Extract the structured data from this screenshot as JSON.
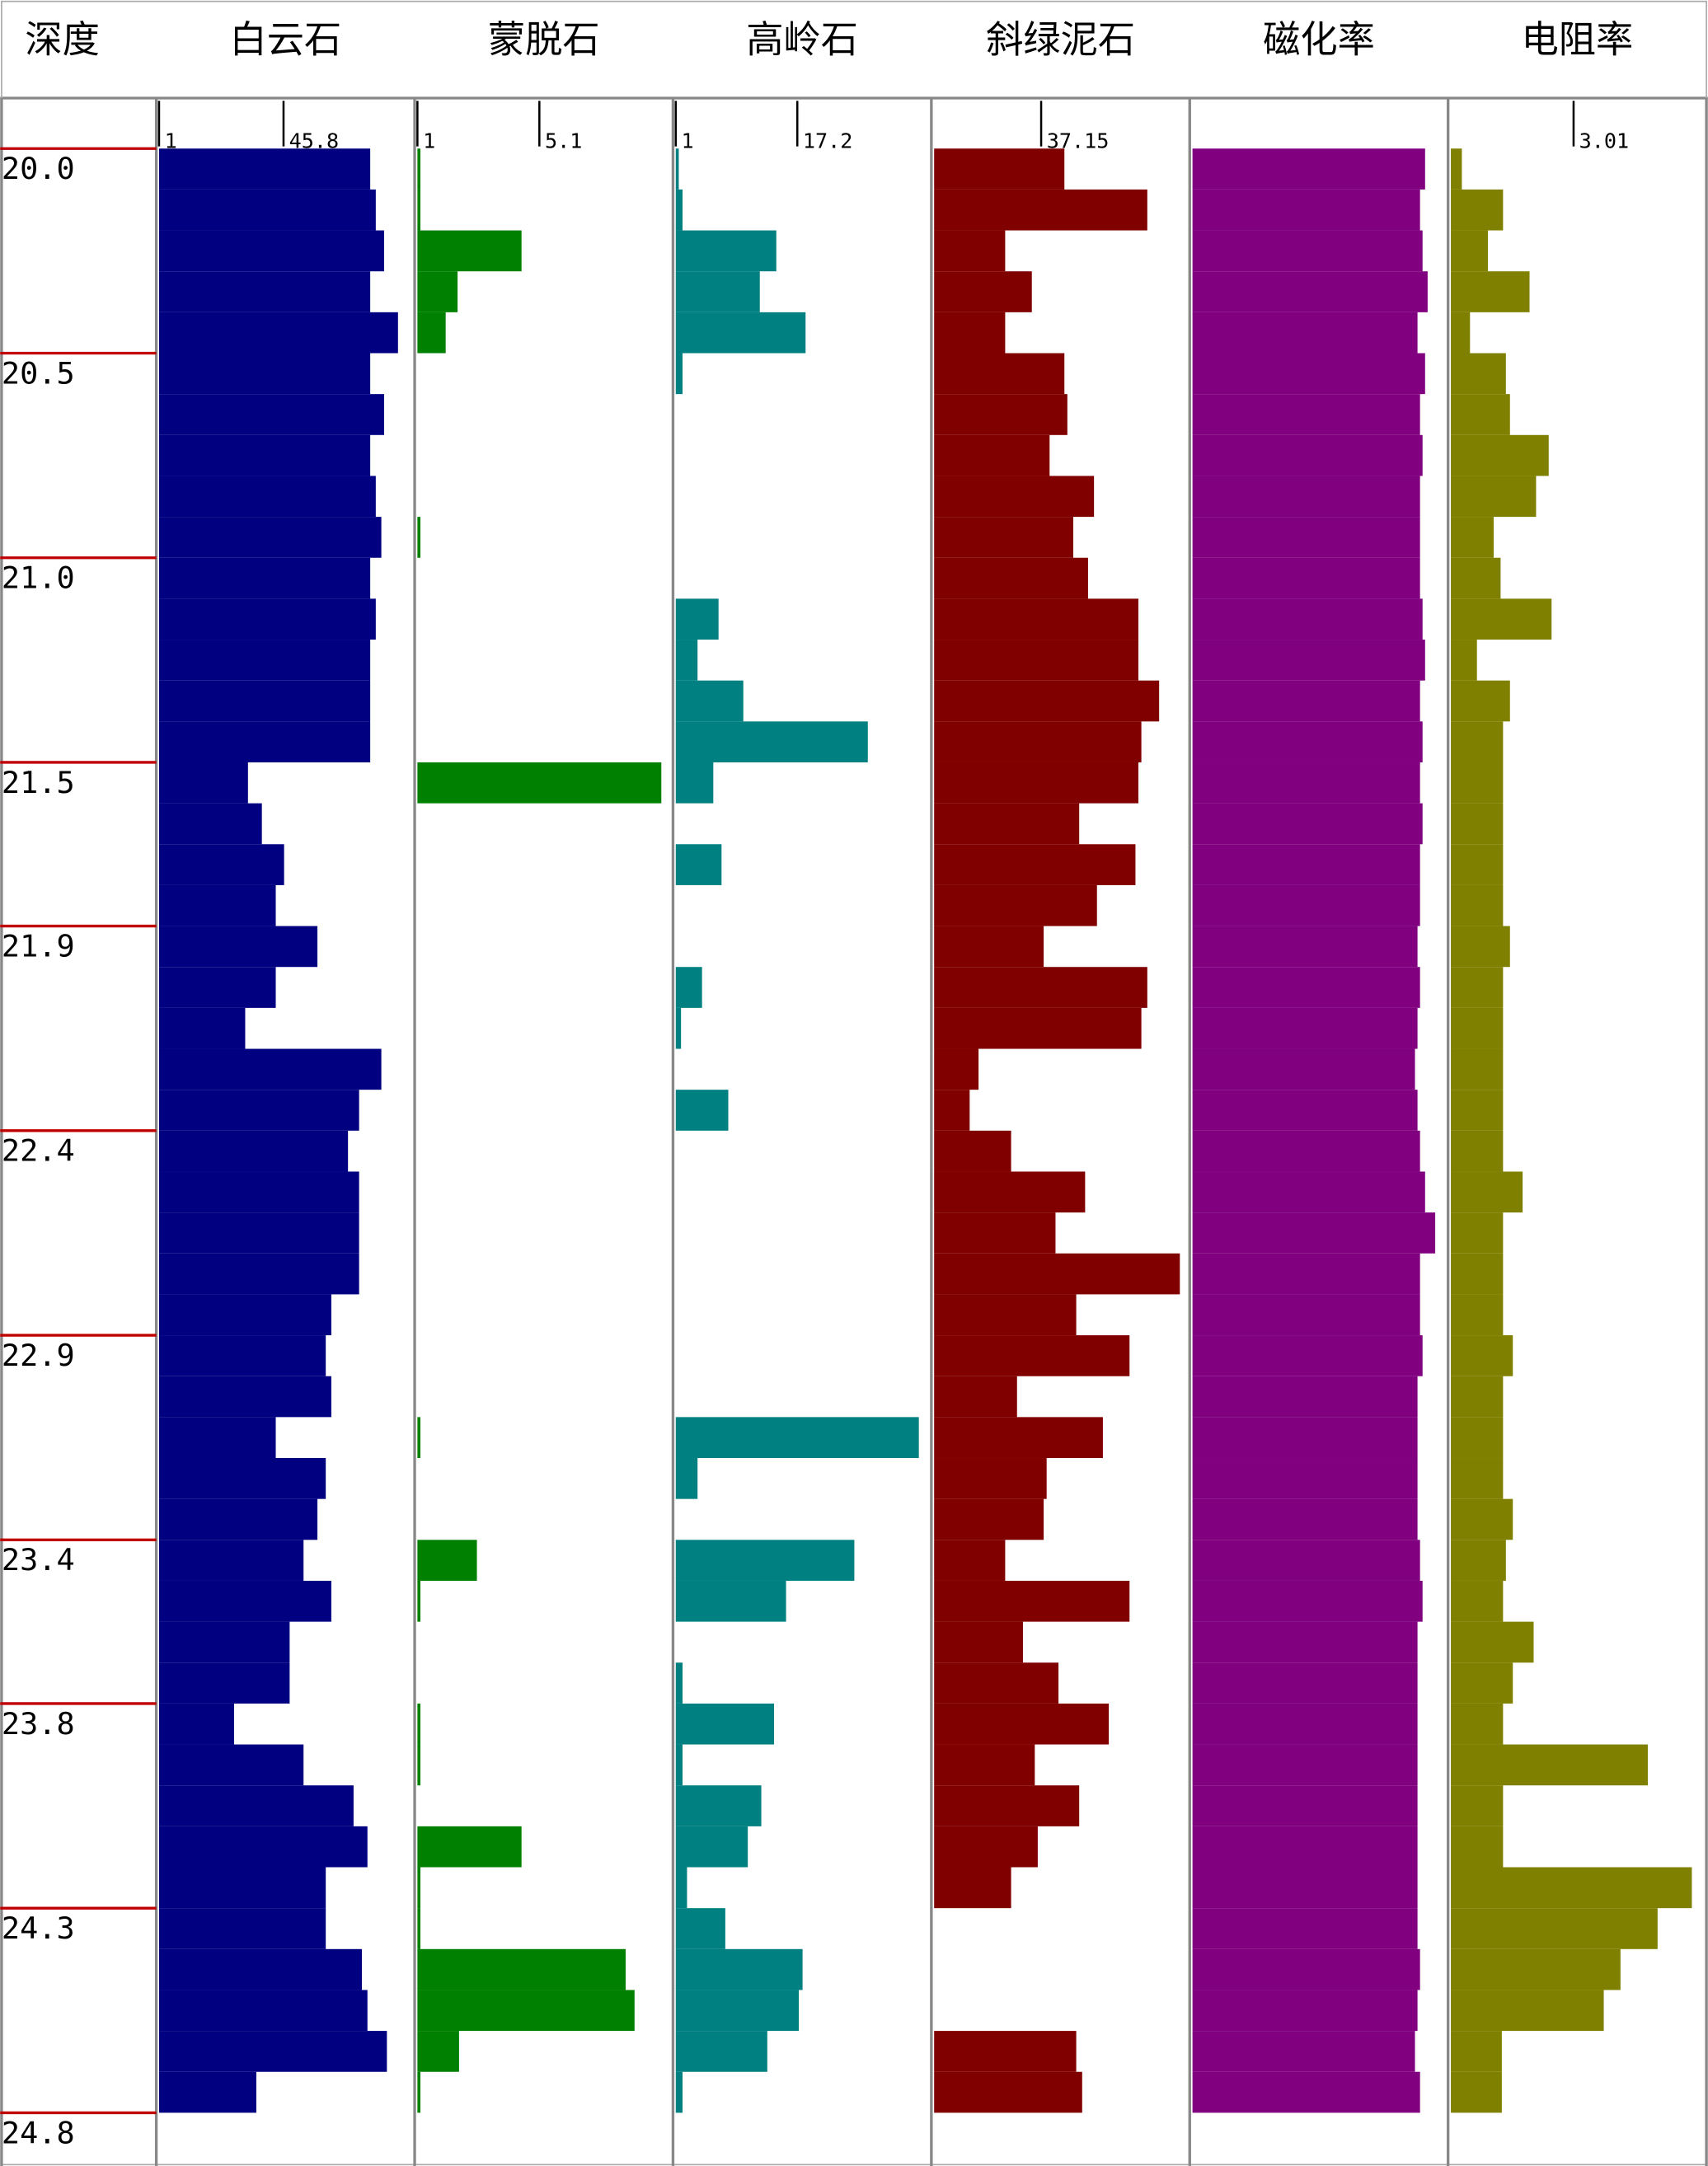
{
  "chart_data": {
    "type": "log-tracks",
    "y_label": "深度",
    "x": [
      20.0,
      20.1,
      20.2,
      20.3,
      20.4,
      20.5,
      20.6,
      20.7,
      20.8,
      20.9,
      21.0,
      21.1,
      21.2,
      21.3,
      21.4,
      21.5,
      21.6,
      21.7,
      21.8,
      21.9,
      22.0,
      22.1,
      22.2,
      22.3,
      22.4,
      22.5,
      22.6,
      22.7,
      22.8,
      22.9,
      23.0,
      23.1,
      23.2,
      23.3,
      23.4,
      23.5,
      23.6,
      23.7,
      23.8,
      23.9,
      24.0,
      24.1,
      24.2,
      24.3,
      24.4,
      24.5,
      24.6,
      24.7
    ],
    "ylim": [
      19.88,
      24.92
    ],
    "yticks": [
      {
        "value": 20.0,
        "label": "20.0"
      },
      {
        "value": 20.5,
        "label": "20.5"
      },
      {
        "value": 21.0,
        "label": "21.0"
      },
      {
        "value": 21.5,
        "label": "21.5"
      },
      21.9,
      22.4,
      22.9,
      23.4,
      23.8,
      24.3,
      24.8
    ],
    "tick_color": "#c00000",
    "series": [
      {
        "name": "白云石",
        "color": "#000080",
        "xlim": [
          1,
          92
        ],
        "xticks": [
          1,
          45.8
        ],
        "values": [
          77,
          79,
          82,
          77,
          87,
          77,
          82,
          77,
          79,
          81,
          77,
          79,
          77,
          77,
          77,
          33,
          38,
          46,
          43,
          58,
          43,
          32,
          81,
          73,
          69,
          73,
          73,
          73,
          63,
          61,
          63,
          43,
          61,
          58,
          53,
          63,
          48,
          48,
          28,
          53,
          71,
          76,
          61,
          61,
          74,
          76,
          83,
          36
        ]
      },
      {
        "name": "蒙脱石",
        "color": "#008000",
        "xlim": [
          1,
          9.5
        ],
        "xticks": [
          1,
          5.1
        ],
        "values": [
          1.1,
          1.1,
          4.5,
          2.35,
          1.95,
          1,
          1,
          1,
          1,
          1.1,
          1,
          1,
          1,
          1,
          1,
          9.2,
          1,
          1,
          1,
          1,
          1,
          1,
          1,
          1,
          1,
          1,
          1,
          1,
          1,
          1,
          1,
          1.1,
          1,
          1,
          3,
          1.1,
          1,
          1,
          1.1,
          1.1,
          1,
          4.5,
          1.1,
          1.1,
          8,
          8.3,
          2.4,
          1.1
        ]
      },
      {
        "name": "高岭石",
        "color": "#008080",
        "xlim": [
          1,
          34.7
        ],
        "xticks": [
          1,
          17.2
        ],
        "values": [
          1.4,
          1.9,
          14.4,
          12.2,
          18.3,
          1.9,
          1,
          1,
          1,
          1,
          1,
          6.7,
          3.9,
          10.0,
          26.6,
          6.0,
          1,
          7.1,
          1,
          1,
          4.5,
          1.7,
          1,
          8.0,
          1,
          1,
          1,
          1,
          1,
          1,
          1,
          33.4,
          3.9,
          1,
          24.8,
          15.7,
          1,
          1.9,
          14.1,
          1.9,
          12.4,
          10.6,
          2.5,
          7.6,
          17.9,
          17.4,
          13.2,
          1.9
        ]
      },
      {
        "name": "斜绿泥石",
        "color": "#800000",
        "xlim": [
          1,
          86.4
        ],
        "xticks": [
          37.15
        ],
        "values": [
          45,
          73,
          25,
          34,
          25,
          45,
          46,
          40,
          55,
          48,
          53,
          70,
          70,
          77,
          71,
          70,
          50,
          69,
          56,
          38,
          73,
          71,
          16,
          13,
          27,
          52,
          42,
          84,
          49,
          67,
          29,
          58,
          39,
          38,
          25,
          67,
          31,
          43,
          60,
          35,
          50,
          36,
          27,
          1,
          1,
          1,
          49,
          51
        ]
      },
      {
        "name": "磁化率",
        "color": "#800080",
        "xlim": [
          0,
          100
        ],
        "values": [
          92,
          90,
          91,
          93,
          89,
          92,
          90,
          91,
          90,
          90,
          90,
          91,
          92,
          90,
          91,
          90,
          91,
          90,
          90,
          89,
          90,
          89,
          88,
          89,
          90,
          92,
          96,
          90,
          90,
          91,
          89,
          89,
          89,
          89,
          90,
          91,
          89,
          89,
          89,
          89,
          89,
          89,
          89,
          89,
          90,
          89,
          88,
          90
        ]
      },
      {
        "name": "电阻率",
        "color": "#808000",
        "xlim": [
          0,
          6.2
        ],
        "xticks": [
          3.01
        ],
        "values": [
          0.27,
          1.28,
          0.91,
          1.93,
          0.47,
          1.35,
          1.45,
          2.4,
          2.09,
          1.05,
          1.22,
          2.47,
          0.64,
          1.45,
          1.28,
          1.28,
          1.28,
          1.28,
          1.28,
          1.45,
          1.28,
          1.28,
          1.28,
          1.28,
          1.28,
          1.76,
          1.28,
          1.28,
          1.28,
          1.52,
          1.28,
          1.28,
          1.28,
          1.52,
          1.35,
          1.28,
          2.03,
          1.52,
          1.28,
          4.83,
          1.28,
          1.28,
          5.91,
          5.07,
          4.16,
          3.75,
          1.25,
          1.25
        ]
      }
    ]
  }
}
